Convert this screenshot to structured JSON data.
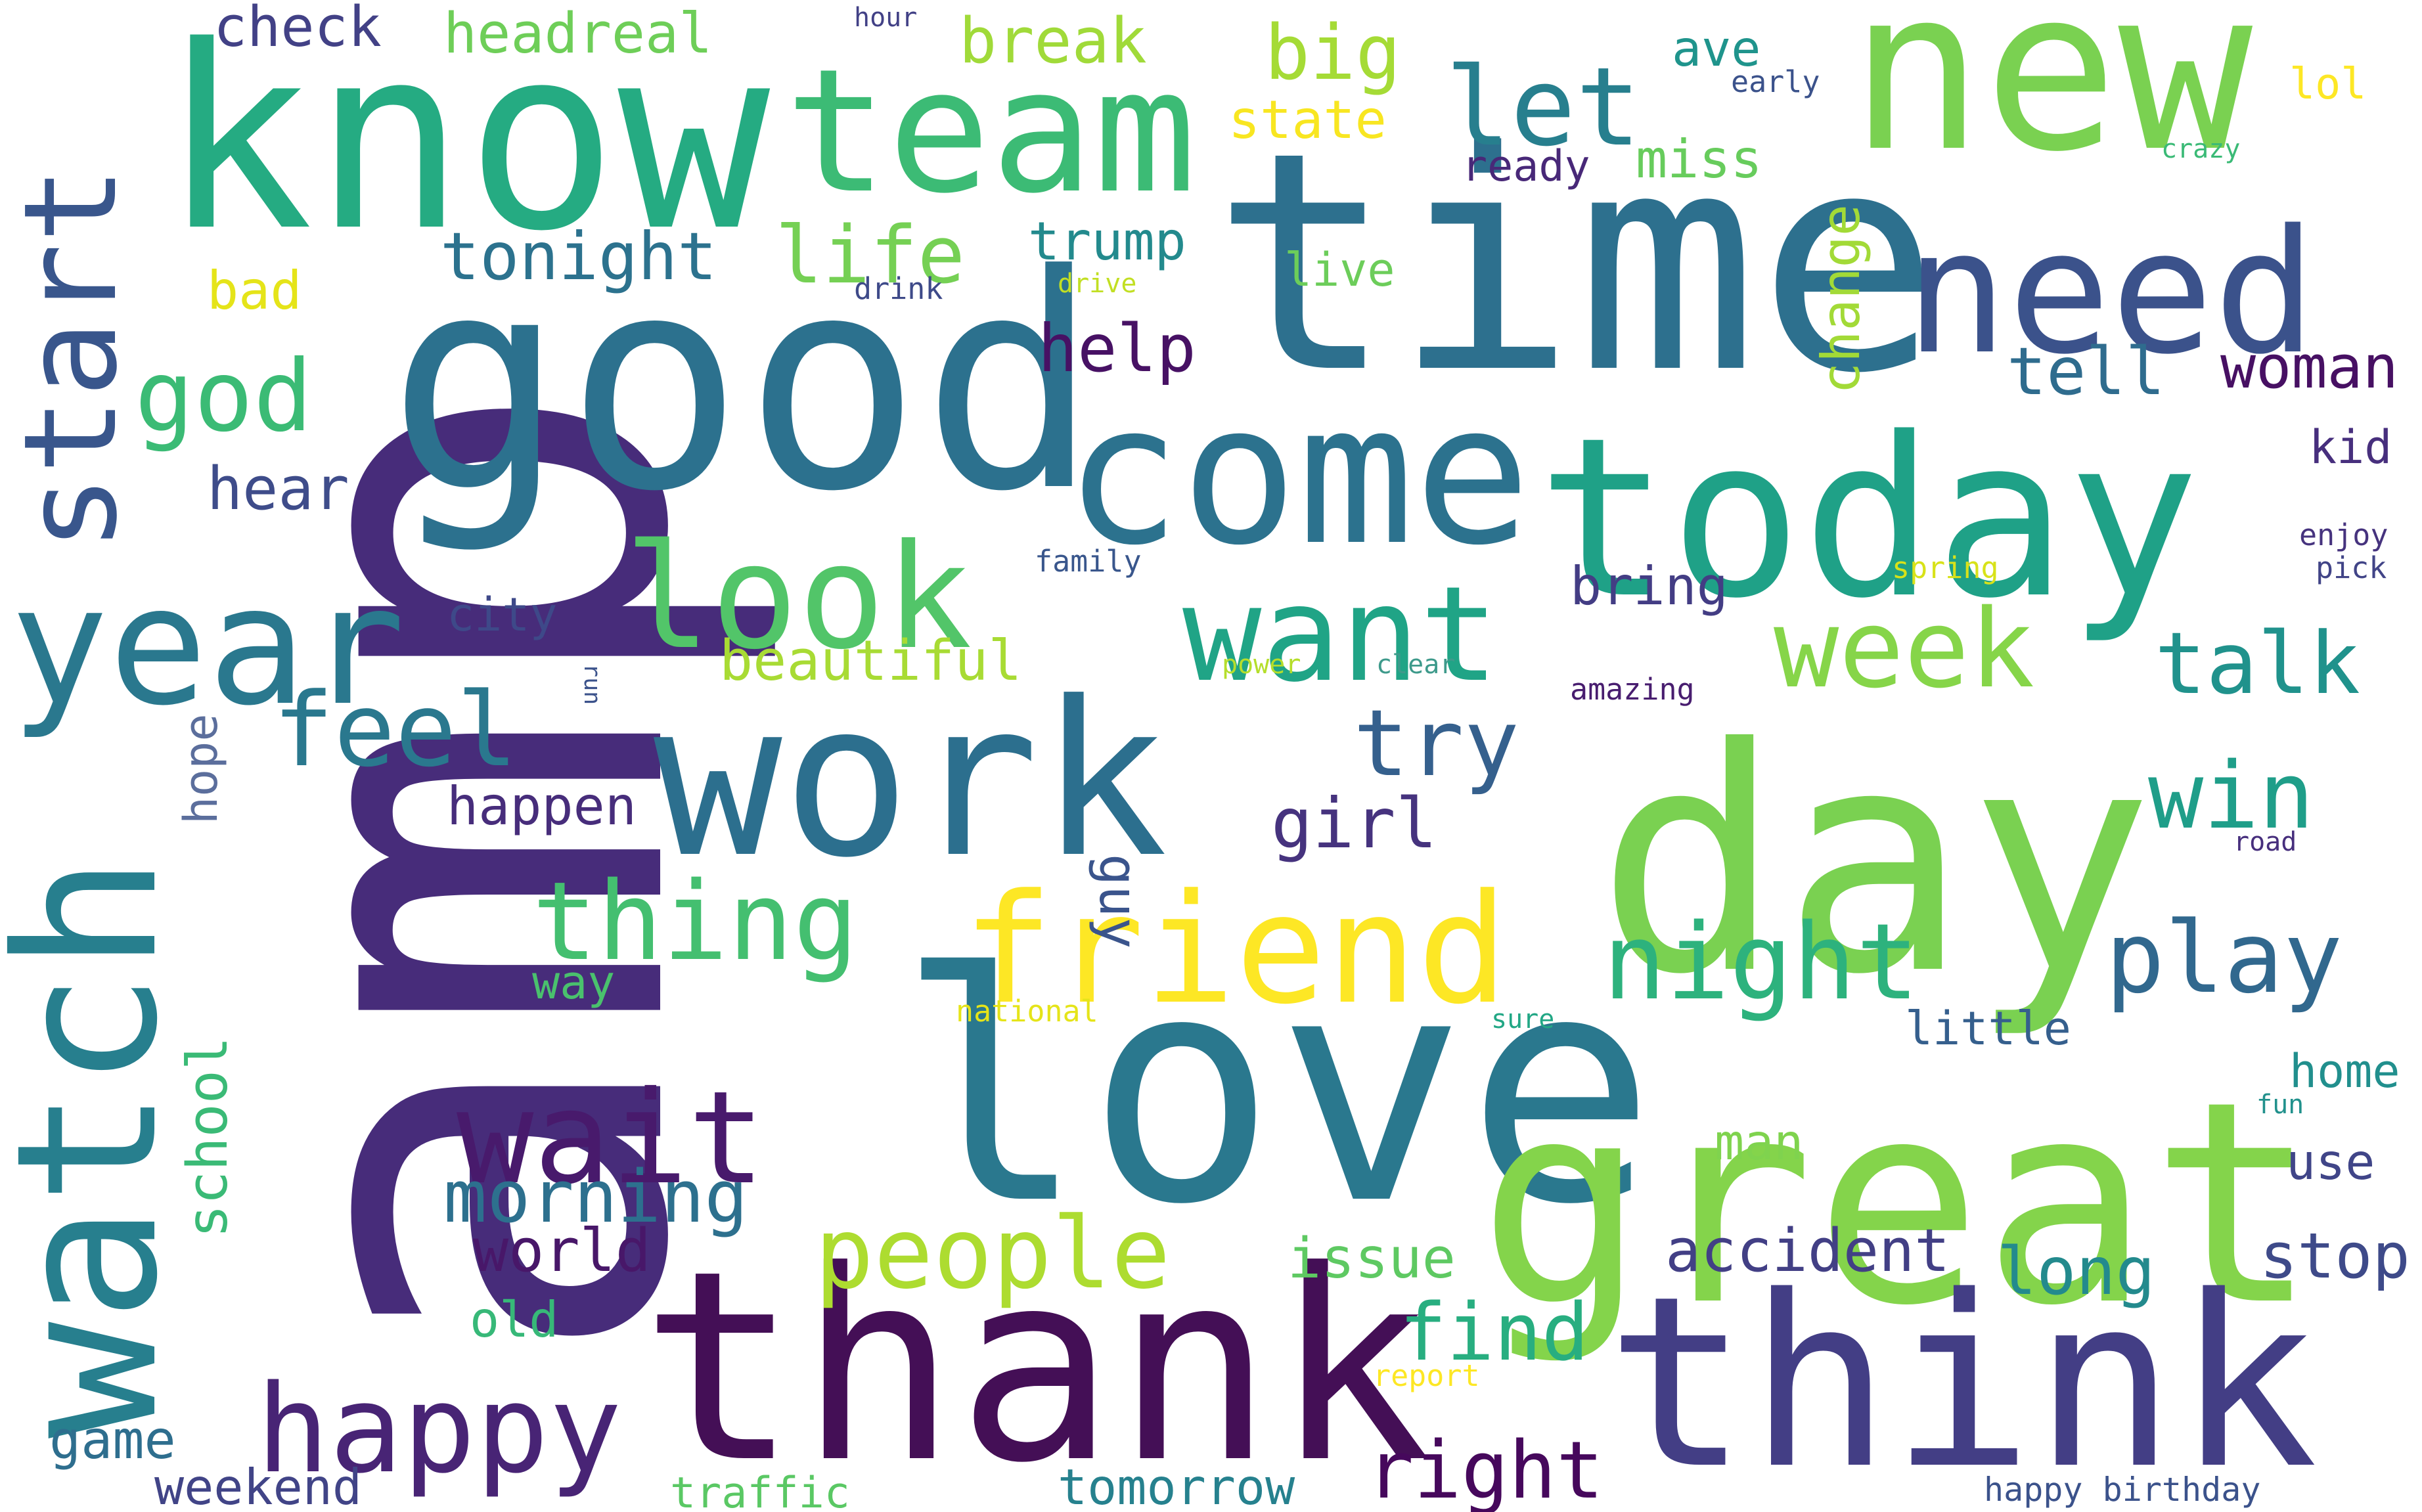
{
  "words": [
    {
      "text": "amp",
      "color": "#472c7a"
    },
    {
      "text": "good",
      "color": "#2c718e"
    },
    {
      "text": "time",
      "color": "#2d708e"
    },
    {
      "text": "love",
      "color": "#2a788e"
    },
    {
      "text": "day",
      "color": "#7ad151"
    },
    {
      "text": "great",
      "color": "#84d44b"
    },
    {
      "text": "thank",
      "color": "#440f56"
    },
    {
      "text": "think",
      "color": "#433e85"
    },
    {
      "text": "know",
      "color": "#25ab82"
    },
    {
      "text": "new",
      "color": "#7ad151"
    },
    {
      "text": "today",
      "color": "#1fa187"
    },
    {
      "text": "work",
      "color": "#2c6f8e"
    },
    {
      "text": "come",
      "color": "#2c728e"
    },
    {
      "text": "watch",
      "color": "#277f8e"
    },
    {
      "text": "team",
      "color": "#3cbb75"
    },
    {
      "text": "need",
      "color": "#3b528b"
    },
    {
      "text": "year",
      "color": "#2a788e"
    },
    {
      "text": "friend",
      "color": "#fde725"
    },
    {
      "text": "look",
      "color": "#52c569"
    },
    {
      "text": "want",
      "color": "#20a486"
    },
    {
      "text": "start",
      "color": "#39568c"
    },
    {
      "text": "wait",
      "color": "#481a6c"
    },
    {
      "text": "happy",
      "color": "#482475"
    },
    {
      "text": "people",
      "color": "#addc30"
    },
    {
      "text": "let",
      "color": "#277f8e"
    },
    {
      "text": "night",
      "color": "#2db27d"
    },
    {
      "text": "week",
      "color": "#86d549"
    },
    {
      "text": "thing",
      "color": "#44bf70"
    },
    {
      "text": "play",
      "color": "#31688e"
    },
    {
      "text": "feel",
      "color": "#2a788e"
    },
    {
      "text": "god",
      "color": "#3bbb75"
    },
    {
      "text": "win",
      "color": "#1f9e89"
    },
    {
      "text": "talk",
      "color": "#20928c"
    },
    {
      "text": "try",
      "color": "#35608d"
    },
    {
      "text": "right",
      "color": "#46085c"
    },
    {
      "text": "find",
      "color": "#28ae80"
    },
    {
      "text": "morning",
      "color": "#2d708e"
    },
    {
      "text": "life",
      "color": "#75d054"
    },
    {
      "text": "big",
      "color": "#a5db36"
    },
    {
      "text": "tonight",
      "color": "#2c728e"
    },
    {
      "text": "accident",
      "color": "#423f85"
    },
    {
      "text": "girl",
      "color": "#46337e"
    },
    {
      "text": "long",
      "color": "#238a8d"
    },
    {
      "text": "help",
      "color": "#471164"
    },
    {
      "text": "tell",
      "color": "#2f6c8e"
    },
    {
      "text": "stop",
      "color": "#3e4a89"
    },
    {
      "text": "break",
      "color": "#a0da39"
    },
    {
      "text": "world",
      "color": "#481769"
    },
    {
      "text": "woman",
      "color": "#471063"
    },
    {
      "text": "school",
      "color": "#3aba76"
    },
    {
      "text": "hear",
      "color": "#3e4c8a"
    },
    {
      "text": "happen",
      "color": "#472d7b"
    },
    {
      "text": "beautiful",
      "color": "#a8db34"
    },
    {
      "text": "issue",
      "color": "#5ec962"
    },
    {
      "text": "bring",
      "color": "#433d84"
    },
    {
      "text": "miss",
      "color": "#67cc5c"
    },
    {
      "text": "trump",
      "color": "#238a8d"
    },
    {
      "text": "state",
      "color": "#f8e621"
    },
    {
      "text": "headreal",
      "color": "#6ece58"
    },
    {
      "text": "check",
      "color": "#424186"
    },
    {
      "text": "change",
      "color": "#a2da37"
    },
    {
      "text": "guy",
      "color": "#3a548c"
    },
    {
      "text": "game",
      "color": "#2e6e8e"
    },
    {
      "text": "weekend",
      "color": "#414487"
    },
    {
      "text": "traffic",
      "color": "#5ac864"
    },
    {
      "text": "tomorrow",
      "color": "#26818e"
    },
    {
      "text": "ave",
      "color": "#1f948c"
    },
    {
      "text": "little",
      "color": "#355f8d"
    },
    {
      "text": "home",
      "color": "#218f8d"
    },
    {
      "text": "use",
      "color": "#404588"
    },
    {
      "text": "man",
      "color": "#7fd34e"
    },
    {
      "text": "way",
      "color": "#4ac16d"
    },
    {
      "text": "old",
      "color": "#37b878"
    },
    {
      "text": "hope",
      "color": "#5b6e9c"
    },
    {
      "text": "city",
      "color": "#3e4989"
    },
    {
      "text": "ready",
      "color": "#482878"
    },
    {
      "text": "bad",
      "color": "#e5e419"
    },
    {
      "text": "live",
      "color": "#6ccd5a"
    },
    {
      "text": "kid",
      "color": "#472f7d"
    },
    {
      "text": "lol",
      "color": "#fde725"
    },
    {
      "text": "hour",
      "color": "#424186"
    },
    {
      "text": "early",
      "color": "#3b528b"
    },
    {
      "text": "crazy",
      "color": "#3aba76"
    },
    {
      "text": "drink",
      "color": "#3e4a89"
    },
    {
      "text": "drive",
      "color": "#c2df23"
    },
    {
      "text": "family",
      "color": "#39568c"
    },
    {
      "text": "spring",
      "color": "#d8e219"
    },
    {
      "text": "enjoy",
      "color": "#46337e"
    },
    {
      "text": "pick",
      "color": "#414487"
    },
    {
      "text": "power",
      "color": "#b5de2b"
    },
    {
      "text": "clear",
      "color": "#3e9a8b"
    },
    {
      "text": "amazing",
      "color": "#481d6f"
    },
    {
      "text": "run",
      "color": "#3b528b"
    },
    {
      "text": "road",
      "color": "#472f7d"
    },
    {
      "text": "national",
      "color": "#e5e419"
    },
    {
      "text": "sure",
      "color": "#22a785"
    },
    {
      "text": "fun",
      "color": "#21918c"
    },
    {
      "text": "report",
      "color": "#fde725"
    },
    {
      "text": "happy birthday",
      "color": "#3b528b"
    }
  ]
}
